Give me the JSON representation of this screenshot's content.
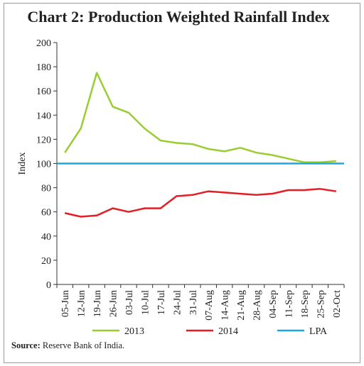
{
  "title": "Chart 2: Production Weighted Rainfall Index",
  "source": {
    "label": "Source:",
    "text": "Reserve Bank of India."
  },
  "colors": {
    "s2013": "#9ACD32",
    "s2014": "#E31E24",
    "lpa": "#1BA8E0",
    "axis": "#333333"
  },
  "chart_data": {
    "type": "line",
    "title": "Chart 2: Production Weighted Rainfall Index",
    "xlabel": "",
    "ylabel": "Index",
    "ylim": [
      0,
      200
    ],
    "yticks": [
      0,
      20,
      40,
      60,
      80,
      100,
      120,
      140,
      160,
      180,
      200
    ],
    "grid": false,
    "legend_position": "bottom",
    "categories": [
      "05-Jun",
      "12-Jun",
      "19-Jun",
      "26-Jun",
      "03-Jul",
      "10-Jul",
      "17-Jul",
      "24-Jul",
      "31-Jul",
      "07-Aug",
      "14-Aug",
      "21-Aug",
      "28-Aug",
      "04-Sep",
      "11-Sep",
      "18-Sep",
      "25-Sep",
      "02-Oct"
    ],
    "series": [
      {
        "name": "2013",
        "color": "#9ACD32",
        "values": [
          109,
          129,
          175,
          147,
          142,
          129,
          119,
          117,
          116,
          112,
          110,
          113,
          109,
          107,
          104,
          101,
          101,
          102
        ]
      },
      {
        "name": "2014",
        "color": "#E31E24",
        "values": [
          59,
          56,
          57,
          63,
          60,
          63,
          63,
          73,
          74,
          77,
          76,
          75,
          74,
          75,
          78,
          78,
          79,
          77
        ]
      },
      {
        "name": "LPA",
        "color": "#1BA8E0",
        "values": [
          100,
          100,
          100,
          100,
          100,
          100,
          100,
          100,
          100,
          100,
          100,
          100,
          100,
          100,
          100,
          100,
          100,
          100
        ]
      }
    ]
  }
}
